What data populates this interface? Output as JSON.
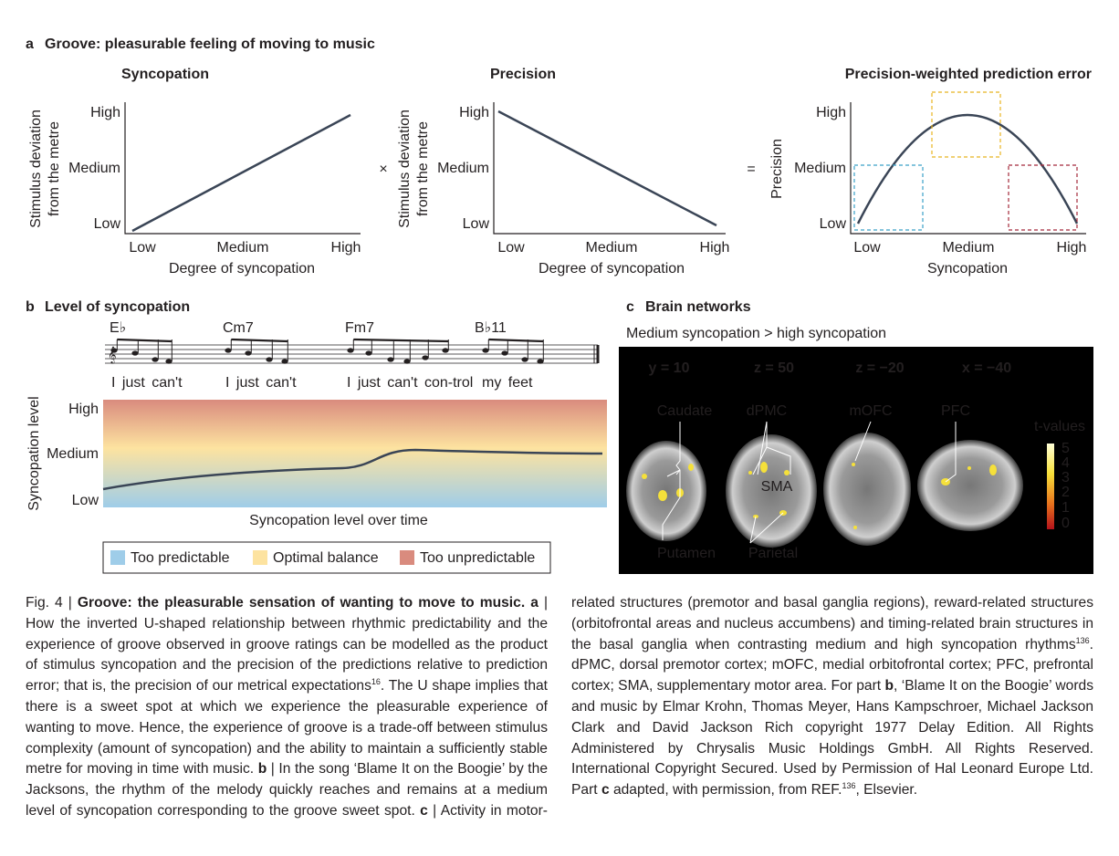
{
  "panel_a": {
    "label": "a",
    "title": "Groove: pleasurable feeling of moving to music",
    "operators": [
      "×",
      "="
    ],
    "plots": [
      {
        "title": "Syncopation",
        "y_label": [
          "Stimulus deviation",
          "from the metre"
        ],
        "y_ticks": [
          "High",
          "Medium",
          "Low"
        ],
        "x_ticks": [
          "Low",
          "Medium",
          "High"
        ],
        "x_label": "Degree of syncopation"
      },
      {
        "title": "Precision",
        "y_label": [
          "Stimulus deviation",
          "from the metre"
        ],
        "y_ticks": [
          "High",
          "Medium",
          "Low"
        ],
        "x_ticks": [
          "Low",
          "Medium",
          "High"
        ],
        "x_label": "Degree of syncopation"
      },
      {
        "title": "Precision-weighted prediction error",
        "y_label": [
          "Precision"
        ],
        "y_ticks": [
          "High",
          "Medium",
          "Low"
        ],
        "x_ticks": [
          "Low",
          "Medium",
          "High"
        ],
        "x_label": "Syncopation"
      }
    ]
  },
  "panel_b": {
    "label": "b",
    "title": "Level of syncopation",
    "chords": [
      "E♭",
      "Cm7",
      "Fm7",
      "B♭11"
    ],
    "lyrics": [
      "I just can't",
      "I just can't",
      "I just can't con-trol",
      "my feet"
    ],
    "y_label": "Syncopation level",
    "y_ticks": [
      "High",
      "Medium",
      "Low"
    ],
    "x_label": "Syncopation level over time",
    "legend": [
      {
        "name": "Too predictable",
        "color": "#9fcde9"
      },
      {
        "name": "Optimal balance",
        "color": "#fde3a0"
      },
      {
        "name": "Too unpredictable",
        "color": "#d98b7e"
      }
    ]
  },
  "panel_c": {
    "label": "c",
    "title": "Brain networks",
    "subtitle": "Medium syncopation > high syncopation",
    "slices": [
      "y = 10",
      "z = 50",
      "z = −20",
      "x = −40"
    ],
    "regions": [
      "Caudate",
      "dPMC",
      "mOFC",
      "PFC",
      "SMA",
      "Putamen",
      "Parietal"
    ],
    "colorbar_title": "t-values",
    "colorbar_ticks": [
      "5",
      "4",
      "3",
      "2",
      "1",
      "0"
    ]
  },
  "caption": {
    "segments": [
      {
        "text": "Fig. 4 | "
      },
      {
        "text": "Groove: the pleasurable sensation of wanting to move to music.",
        "bold": true
      },
      {
        "text": " "
      },
      {
        "text": "a",
        "bold": true
      },
      {
        "text": " | How the inverted U-shaped relationship between rhythmic predictability and the experience of groove observed in groove ratings can be modelled as the product of stimulus syncopation and the precision of the predictions relative to prediction error; that is, the precision of our metrical expectations"
      },
      {
        "text": "16",
        "sup": true
      },
      {
        "text": ". The U shape implies that there is a sweet spot at which we experience the pleasurable experience of wanting to move. Hence, the experience of groove is a trade-off between stimulus complexity (amount of syncopation) and the ability to maintain a sufficiently stable metre for moving in time with music. "
      },
      {
        "text": "b",
        "bold": true
      },
      {
        "text": " | In the song ‘Blame It on the Boogie’ by the Jacksons, the rhythm of the melody quickly reaches and remains at a medium level of syncopation corresponding to the groove sweet spot. "
      },
      {
        "text": "c",
        "bold": true
      },
      {
        "text": " | Activity in motor-related structures (premotor and basal ganglia regions), reward-related structures (orbitofrontal areas and nucleus accumbens) and timing-related brain structures in the basal ganglia when contrasting medium and high syncopation rhythms"
      },
      {
        "text": "136",
        "sup": true
      },
      {
        "text": ". dPMC, dorsal premotor cortex; mOFC, medial orbitofrontal cortex; PFC, prefrontal cortex; SMA, supplementary motor area. For part "
      },
      {
        "text": "b",
        "bold": true
      },
      {
        "text": ", ‘Blame It on the Boogie’ words and music by Elmar Krohn, Thomas Meyer, Hans Kampschroer, Michael Jackson Clark and David Jackson Rich copyright 1977 Delay Edition. All Rights Administered by Chrysalis Music Holdings GmbH. All Rights Reserved. International Copyright Secured. Used by Permission of Hal Leonard Europe Ltd. Part "
      },
      {
        "text": "c",
        "bold": true
      },
      {
        "text": " adapted, with permission, from REF."
      },
      {
        "text": "136",
        "sup": true
      },
      {
        "text": ", Elsevier."
      }
    ]
  }
}
